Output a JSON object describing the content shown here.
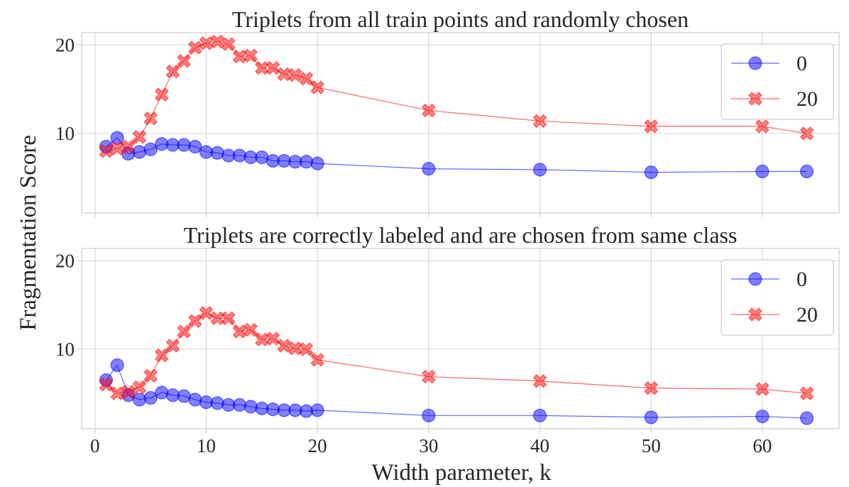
{
  "chart_data": [
    {
      "type": "line",
      "title": "Triplets from all train points and randomly chosen",
      "xlabel": "",
      "ylabel": "Fragmentation Score",
      "xlim": [
        -1.2,
        66.9
      ],
      "ylim": [
        1,
        21.4
      ],
      "xticks": [
        0,
        10,
        20,
        30,
        40,
        50,
        60
      ],
      "yticks": [
        10,
        20
      ],
      "grid": true,
      "legend": "top-right",
      "x": [
        1,
        2,
        3,
        4,
        5,
        6,
        7,
        8,
        9,
        10,
        11,
        12,
        13,
        14,
        15,
        16,
        17,
        18,
        19,
        20,
        30,
        40,
        50,
        60,
        64
      ],
      "series": [
        {
          "name": "0",
          "color": "#0000ff",
          "marker": "circle",
          "values": [
            8.5,
            9.5,
            7.7,
            7.9,
            8.2,
            8.8,
            8.7,
            8.7,
            8.5,
            7.9,
            7.8,
            7.5,
            7.5,
            7.3,
            7.3,
            6.9,
            6.9,
            6.8,
            6.8,
            6.6,
            6.0,
            5.9,
            5.6,
            5.7,
            5.7
          ]
        },
        {
          "name": "20",
          "color": "#ff0000",
          "marker": "x",
          "values": [
            8.0,
            8.3,
            8.5,
            9.6,
            11.7,
            14.4,
            17.0,
            18.2,
            19.7,
            20.2,
            20.4,
            20.1,
            18.7,
            18.8,
            17.4,
            17.4,
            16.7,
            16.6,
            16.2,
            15.2,
            12.6,
            11.4,
            10.8,
            10.8,
            10.0
          ]
        }
      ]
    },
    {
      "type": "line",
      "title": "Triplets are correctly labeled and are chosen from same class",
      "xlabel": "Width parameter, k",
      "ylabel": "",
      "xlim": [
        -1.2,
        66.9
      ],
      "ylim": [
        1,
        21.4
      ],
      "xticks": [
        0,
        10,
        20,
        30,
        40,
        50,
        60
      ],
      "yticks": [
        10,
        20
      ],
      "grid": true,
      "legend": "top-right",
      "x": [
        1,
        2,
        3,
        4,
        5,
        6,
        7,
        8,
        9,
        10,
        11,
        12,
        13,
        14,
        15,
        16,
        17,
        18,
        19,
        20,
        30,
        40,
        50,
        60,
        64
      ],
      "series": [
        {
          "name": "0",
          "color": "#0000ff",
          "marker": "circle",
          "values": [
            6.5,
            8.2,
            4.8,
            4.3,
            4.5,
            5.1,
            4.8,
            4.7,
            4.3,
            4.0,
            3.9,
            3.7,
            3.7,
            3.5,
            3.3,
            3.2,
            3.1,
            3.1,
            3.0,
            3.1,
            2.5,
            2.5,
            2.3,
            2.4,
            2.2
          ]
        },
        {
          "name": "20",
          "color": "#ff0000",
          "marker": "x",
          "values": [
            6.0,
            5.0,
            5.2,
            5.7,
            7.0,
            9.3,
            10.4,
            12.0,
            13.2,
            14.1,
            13.5,
            13.5,
            12.0,
            12.2,
            11.1,
            11.2,
            10.4,
            10.1,
            10.0,
            8.8,
            6.9,
            6.4,
            5.6,
            5.5,
            5.0
          ]
        }
      ]
    }
  ]
}
